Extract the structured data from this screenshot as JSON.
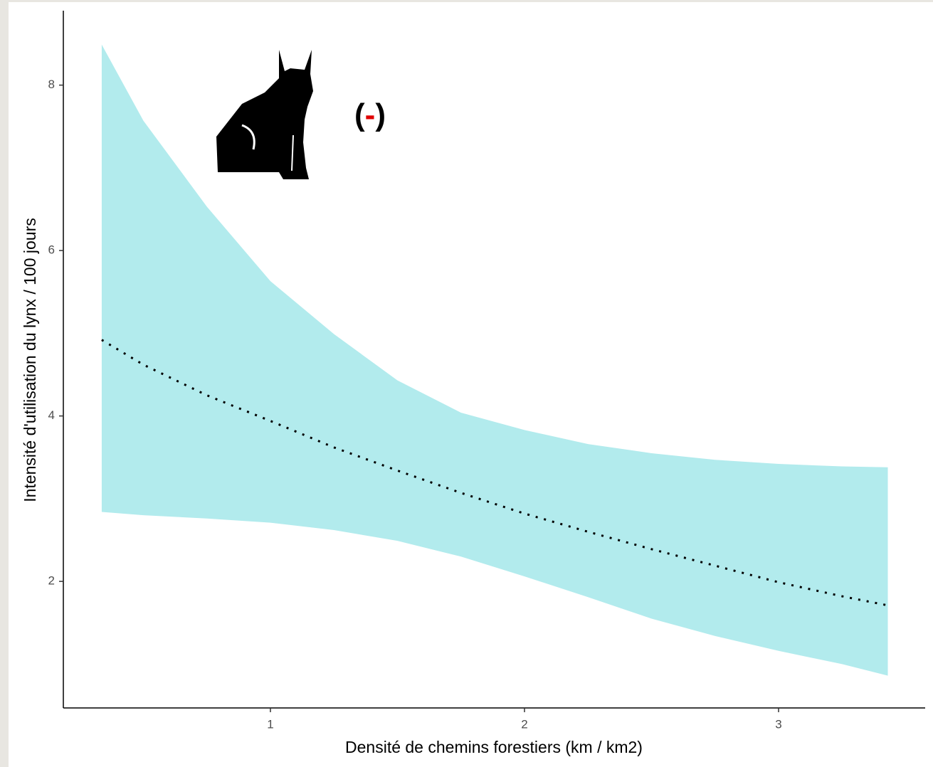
{
  "chart_data": {
    "type": "line",
    "xlabel": "Densité de chemins forestiers (km / km2)",
    "ylabel": "Intensité d'utilisation du lynx / 100 jours",
    "annotation": "(-)",
    "x": [
      0.336,
      0.5,
      0.75,
      1,
      1.25,
      1.5,
      1.75,
      2,
      2.25,
      2.5,
      2.75,
      3,
      3.25,
      3.43
    ],
    "line": {
      "color": "#000000",
      "values": [
        4.92,
        4.62,
        4.25,
        3.94,
        3.62,
        3.34,
        3.07,
        2.82,
        2.6,
        2.39,
        2.19,
        1.99,
        1.82,
        1.71
      ]
    },
    "band": {
      "color": "#b2ebed",
      "upper": [
        8.49,
        7.57,
        6.53,
        5.63,
        4.99,
        4.43,
        4.04,
        3.83,
        3.66,
        3.55,
        3.47,
        3.42,
        3.39,
        3.38
      ],
      "lower": [
        2.84,
        2.8,
        2.76,
        2.71,
        2.62,
        2.49,
        2.3,
        2.06,
        1.81,
        1.55,
        1.34,
        1.16,
        1.0,
        0.86
      ]
    },
    "xlim": [
      0.185,
      3.577
    ],
    "xticks": [
      1,
      2,
      3
    ],
    "ylim": [
      0.47,
      8.9
    ],
    "yticks": [
      2,
      4,
      6,
      8
    ],
    "grid": false
  }
}
